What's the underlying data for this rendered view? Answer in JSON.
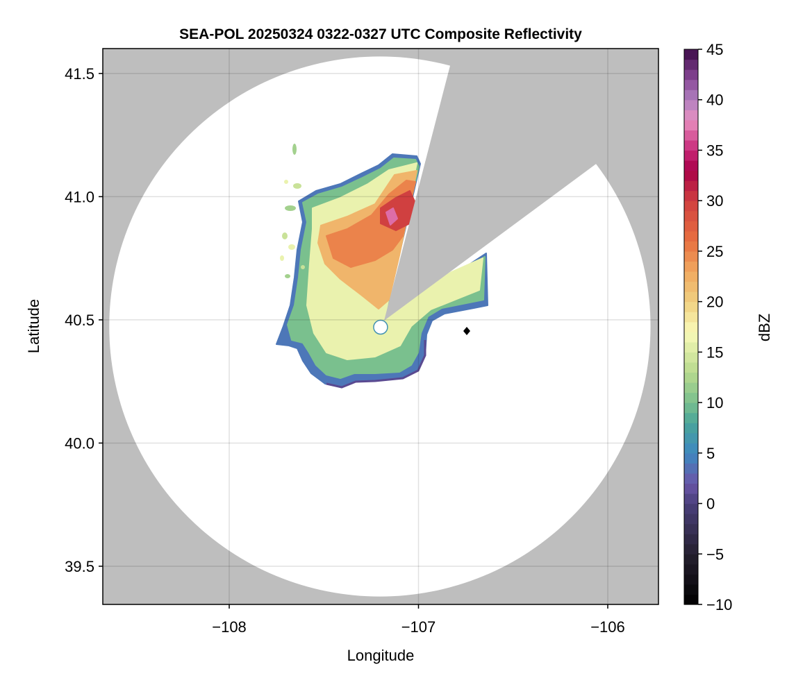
{
  "chart_data": {
    "type": "heatmap",
    "title": "SEA-POL 20250324 0322-0327 UTC Composite Reflectivity",
    "xlabel": "Longitude",
    "ylabel": "Latitude",
    "xlim": [
      -108.668,
      -105.732
    ],
    "ylim": [
      39.345,
      41.601
    ],
    "xticks": [
      -108,
      -107,
      -106
    ],
    "xtick_labels": [
      "−108",
      "−107",
      "−106"
    ],
    "yticks": [
      39.5,
      40.0,
      40.5,
      41.0,
      41.5
    ],
    "ytick_labels": [
      "39.5",
      "40.0",
      "40.5",
      "41.0",
      "41.5"
    ],
    "grid": true,
    "radar": {
      "lon": -107.204,
      "lat": 40.473,
      "range_deg_lon": 1.43,
      "range_deg_lat": 1.096,
      "blocked_sector_azimuth_deg": [
        14.5,
        53.5
      ]
    },
    "echo_summary": {
      "max_dbz_approx": 41,
      "typical_core_dbz": 24,
      "edge_dbz": 5
    },
    "colorbar": {
      "label": "dBZ",
      "range": [
        -10,
        45
      ],
      "step": 1,
      "ticks": [
        -10,
        -5,
        0,
        5,
        10,
        15,
        20,
        25,
        30,
        35,
        40,
        45
      ],
      "tick_labels": [
        "−10",
        "−5",
        "0",
        "5",
        "10",
        "15",
        "20",
        "25",
        "30",
        "35",
        "40",
        "45"
      ],
      "color_stops": [
        [
          -10,
          "#000000"
        ],
        [
          -5,
          "#25202f"
        ],
        [
          0,
          "#4a3f7a"
        ],
        [
          2,
          "#6a55a8"
        ],
        [
          5,
          "#3e88c0"
        ],
        [
          8,
          "#4aa59a"
        ],
        [
          10,
          "#7ac08e"
        ],
        [
          13,
          "#b8da8e"
        ],
        [
          17,
          "#fafab8"
        ],
        [
          20,
          "#f0d080"
        ],
        [
          23,
          "#f0a860"
        ],
        [
          26,
          "#e87040"
        ],
        [
          30,
          "#d04040"
        ],
        [
          33,
          "#a80048"
        ],
        [
          35,
          "#c82878"
        ],
        [
          38,
          "#e890c0"
        ],
        [
          40,
          "#b080c0"
        ],
        [
          42,
          "#8a4a98"
        ],
        [
          45,
          "#3c0a48"
        ]
      ]
    },
    "colors": {
      "background_no_data": "#bebebe",
      "in_range": "#ffffff",
      "grid": "#d9d9d9"
    }
  }
}
